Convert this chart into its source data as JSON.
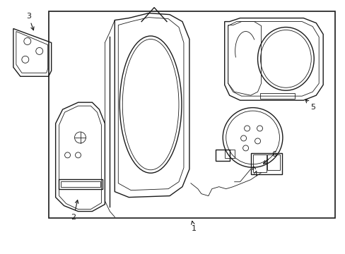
{
  "background_color": "#ffffff",
  "line_color": "#1a1a1a",
  "text_color": "#000000",
  "fig_width": 4.89,
  "fig_height": 3.6,
  "dpi": 100
}
